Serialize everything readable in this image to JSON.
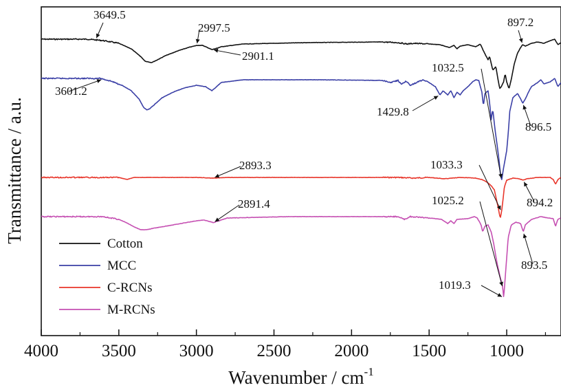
{
  "chart_data": {
    "type": "line",
    "title": "",
    "xlabel": "Wavenumber / cm",
    "xlabel_sup": "-1",
    "ylabel": "Transmittance / a.u.",
    "xlim": [
      4000,
      650
    ],
    "x_reversed": true,
    "y_ticks_shown": false,
    "grid": false,
    "legend_position": "bottom-left",
    "x_ticks": [
      4000,
      3500,
      3000,
      2500,
      2000,
      1500,
      1000
    ],
    "x_tick_labels": [
      "4000",
      "3500",
      "3000",
      "2500",
      "2000",
      "1500",
      "1000"
    ],
    "series": [
      {
        "name": "Cotton",
        "color": "#111111",
        "offset": 57,
        "points": [
          [
            4000,
            0
          ],
          [
            3700,
            0
          ],
          [
            3600,
            2
          ],
          [
            3500,
            6
          ],
          [
            3420,
            14
          ],
          [
            3360,
            25
          ],
          [
            3330,
            32
          ],
          [
            3290,
            34
          ],
          [
            3260,
            31
          ],
          [
            3200,
            24
          ],
          [
            3120,
            17
          ],
          [
            3050,
            12
          ],
          [
            2997.5,
            9
          ],
          [
            2960,
            9
          ],
          [
            2920,
            13
          ],
          [
            2901.1,
            15
          ],
          [
            2880,
            14
          ],
          [
            2840,
            11
          ],
          [
            2700,
            7
          ],
          [
            2300,
            5
          ],
          [
            1800,
            4
          ],
          [
            1700,
            5
          ],
          [
            1640,
            7
          ],
          [
            1600,
            6
          ],
          [
            1500,
            7
          ],
          [
            1430,
            8
          ],
          [
            1400,
            10
          ],
          [
            1370,
            12
          ],
          [
            1340,
            9
          ],
          [
            1320,
            14
          ],
          [
            1300,
            10
          ],
          [
            1250,
            8
          ],
          [
            1200,
            11
          ],
          [
            1170,
            7
          ],
          [
            1150,
            17
          ],
          [
            1120,
            30
          ],
          [
            1110,
            25
          ],
          [
            1090,
            45
          ],
          [
            1070,
            40
          ],
          [
            1055,
            60
          ],
          [
            1045,
            72
          ],
          [
            1032.5,
            68
          ],
          [
            1020,
            62
          ],
          [
            1010,
            50
          ],
          [
            1000,
            62
          ],
          [
            985,
            72
          ],
          [
            970,
            58
          ],
          [
            950,
            35
          ],
          [
            930,
            20
          ],
          [
            910,
            12
          ],
          [
            897.2,
            8
          ],
          [
            880,
            10
          ],
          [
            840,
            6
          ],
          [
            800,
            4
          ],
          [
            760,
            6
          ],
          [
            720,
            2
          ],
          [
            690,
            0
          ],
          [
            670,
            8
          ],
          [
            650,
            5
          ]
        ],
        "annotations": [
          {
            "label": "3649.5",
            "x": 3649.5
          },
          {
            "label": "2997.5",
            "x": 2997.5
          },
          {
            "label": "2901.1",
            "x": 2901.1
          },
          {
            "label": "897.2",
            "x": 897.2
          }
        ]
      },
      {
        "name": "MCC",
        "color": "#3a3fa6",
        "offset": 114,
        "points": [
          [
            4000,
            0
          ],
          [
            3620,
            0
          ],
          [
            3601.2,
            1
          ],
          [
            3550,
            4
          ],
          [
            3480,
            10
          ],
          [
            3420,
            18
          ],
          [
            3370,
            30
          ],
          [
            3340,
            42
          ],
          [
            3320,
            46
          ],
          [
            3300,
            44
          ],
          [
            3270,
            38
          ],
          [
            3220,
            28
          ],
          [
            3150,
            20
          ],
          [
            3080,
            14
          ],
          [
            3000,
            10
          ],
          [
            2940,
            12
          ],
          [
            2900,
            18
          ],
          [
            2880,
            14
          ],
          [
            2840,
            6
          ],
          [
            2700,
            2
          ],
          [
            2200,
            2
          ],
          [
            1800,
            3
          ],
          [
            1750,
            6
          ],
          [
            1700,
            3
          ],
          [
            1680,
            9
          ],
          [
            1650,
            4
          ],
          [
            1620,
            10
          ],
          [
            1580,
            6
          ],
          [
            1540,
            2
          ],
          [
            1500,
            6
          ],
          [
            1460,
            12
          ],
          [
            1429.8,
            24
          ],
          [
            1410,
            18
          ],
          [
            1380,
            24
          ],
          [
            1360,
            18
          ],
          [
            1340,
            28
          ],
          [
            1320,
            20
          ],
          [
            1300,
            24
          ],
          [
            1280,
            18
          ],
          [
            1250,
            12
          ],
          [
            1220,
            5
          ],
          [
            1200,
            2
          ],
          [
            1180,
            3
          ],
          [
            1160,
            20
          ],
          [
            1150,
            40
          ],
          [
            1140,
            22
          ],
          [
            1120,
            18
          ],
          [
            1110,
            35
          ],
          [
            1100,
            60
          ],
          [
            1090,
            45
          ],
          [
            1075,
            75
          ],
          [
            1060,
            100
          ],
          [
            1050,
            118
          ],
          [
            1040,
            140
          ],
          [
            1032.5,
            148
          ],
          [
            1020,
            130
          ],
          [
            1000,
            105
          ],
          [
            990,
            80
          ],
          [
            980,
            48
          ],
          [
            960,
            28
          ],
          [
            930,
            22
          ],
          [
            910,
            30
          ],
          [
            896.5,
            36
          ],
          [
            880,
            30
          ],
          [
            860,
            20
          ],
          [
            840,
            12
          ],
          [
            800,
            6
          ],
          [
            780,
            2
          ],
          [
            760,
            8
          ],
          [
            720,
            5
          ],
          [
            690,
            0
          ],
          [
            670,
            12
          ],
          [
            650,
            6
          ]
        ],
        "annotations": [
          {
            "label": "3601.2",
            "x": 3601.2
          },
          {
            "label": "1429.8",
            "x": 1429.8
          },
          {
            "label": "1032.5",
            "x": 1032.5
          },
          {
            "label": "896.5",
            "x": 896.5
          }
        ]
      },
      {
        "name": "C-RCNs",
        "color": "#e8352a",
        "offset": 258,
        "points": [
          [
            4000,
            0
          ],
          [
            3500,
            0
          ],
          [
            3450,
            3
          ],
          [
            3400,
            0
          ],
          [
            3000,
            0
          ],
          [
            2893.3,
            1
          ],
          [
            2800,
            0
          ],
          [
            2000,
            0
          ],
          [
            1700,
            0
          ],
          [
            1600,
            1
          ],
          [
            1500,
            0
          ],
          [
            1400,
            2
          ],
          [
            1300,
            0
          ],
          [
            1200,
            1
          ],
          [
            1160,
            3
          ],
          [
            1140,
            5
          ],
          [
            1120,
            8
          ],
          [
            1100,
            12
          ],
          [
            1080,
            18
          ],
          [
            1070,
            28
          ],
          [
            1055,
            44
          ],
          [
            1045,
            56
          ],
          [
            1040,
            58
          ],
          [
            1033.3,
            50
          ],
          [
            1025,
            35
          ],
          [
            1015,
            14
          ],
          [
            1000,
            4
          ],
          [
            960,
            1
          ],
          [
            920,
            2
          ],
          [
            894.2,
            4
          ],
          [
            870,
            2
          ],
          [
            800,
            0
          ],
          [
            720,
            0
          ],
          [
            700,
            3
          ],
          [
            685,
            10
          ],
          [
            670,
            3
          ],
          [
            650,
            0
          ]
        ],
        "annotations": [
          {
            "label": "2893.3",
            "x": 2893.3
          },
          {
            "label": "1033.3",
            "x": 1033.3
          },
          {
            "label": "894.2",
            "x": 894.2
          }
        ]
      },
      {
        "name": "M-RCNs",
        "color": "#c54fb2",
        "offset": 315,
        "points": [
          [
            4000,
            0
          ],
          [
            3600,
            0
          ],
          [
            3500,
            4
          ],
          [
            3450,
            9
          ],
          [
            3400,
            15
          ],
          [
            3360,
            19
          ],
          [
            3320,
            19
          ],
          [
            3280,
            17
          ],
          [
            3200,
            14
          ],
          [
            3100,
            10
          ],
          [
            3000,
            6
          ],
          [
            2950,
            5
          ],
          [
            2900,
            8
          ],
          [
            2891.4,
            9
          ],
          [
            2870,
            7
          ],
          [
            2800,
            2
          ],
          [
            2400,
            0
          ],
          [
            2000,
            0
          ],
          [
            1700,
            0
          ],
          [
            1660,
            4
          ],
          [
            1620,
            0
          ],
          [
            1500,
            2
          ],
          [
            1420,
            4
          ],
          [
            1380,
            10
          ],
          [
            1360,
            6
          ],
          [
            1340,
            10
          ],
          [
            1320,
            4
          ],
          [
            1250,
            3
          ],
          [
            1210,
            0
          ],
          [
            1190,
            2
          ],
          [
            1165,
            12
          ],
          [
            1155,
            22
          ],
          [
            1140,
            14
          ],
          [
            1120,
            12
          ],
          [
            1100,
            22
          ],
          [
            1085,
            38
          ],
          [
            1070,
            58
          ],
          [
            1060,
            70
          ],
          [
            1050,
            80
          ],
          [
            1040,
            90
          ],
          [
            1030,
            98
          ],
          [
            1025.2,
            104
          ],
          [
            1019.3,
            118
          ],
          [
            1010,
            90
          ],
          [
            1000,
            60
          ],
          [
            990,
            30
          ],
          [
            970,
            12
          ],
          [
            940,
            8
          ],
          [
            910,
            10
          ],
          [
            893.5,
            22
          ],
          [
            880,
            12
          ],
          [
            840,
            4
          ],
          [
            780,
            0
          ],
          [
            730,
            2
          ],
          [
            700,
            3
          ],
          [
            685,
            14
          ],
          [
            670,
            4
          ],
          [
            650,
            2
          ]
        ],
        "annotations": [
          {
            "label": "2891.4",
            "x": 2891.4
          },
          {
            "label": "1025.2",
            "x": 1025.2
          },
          {
            "label": "893.5",
            "x": 893.5
          },
          {
            "label": "1019.3",
            "x": 1019.3
          }
        ]
      }
    ]
  }
}
